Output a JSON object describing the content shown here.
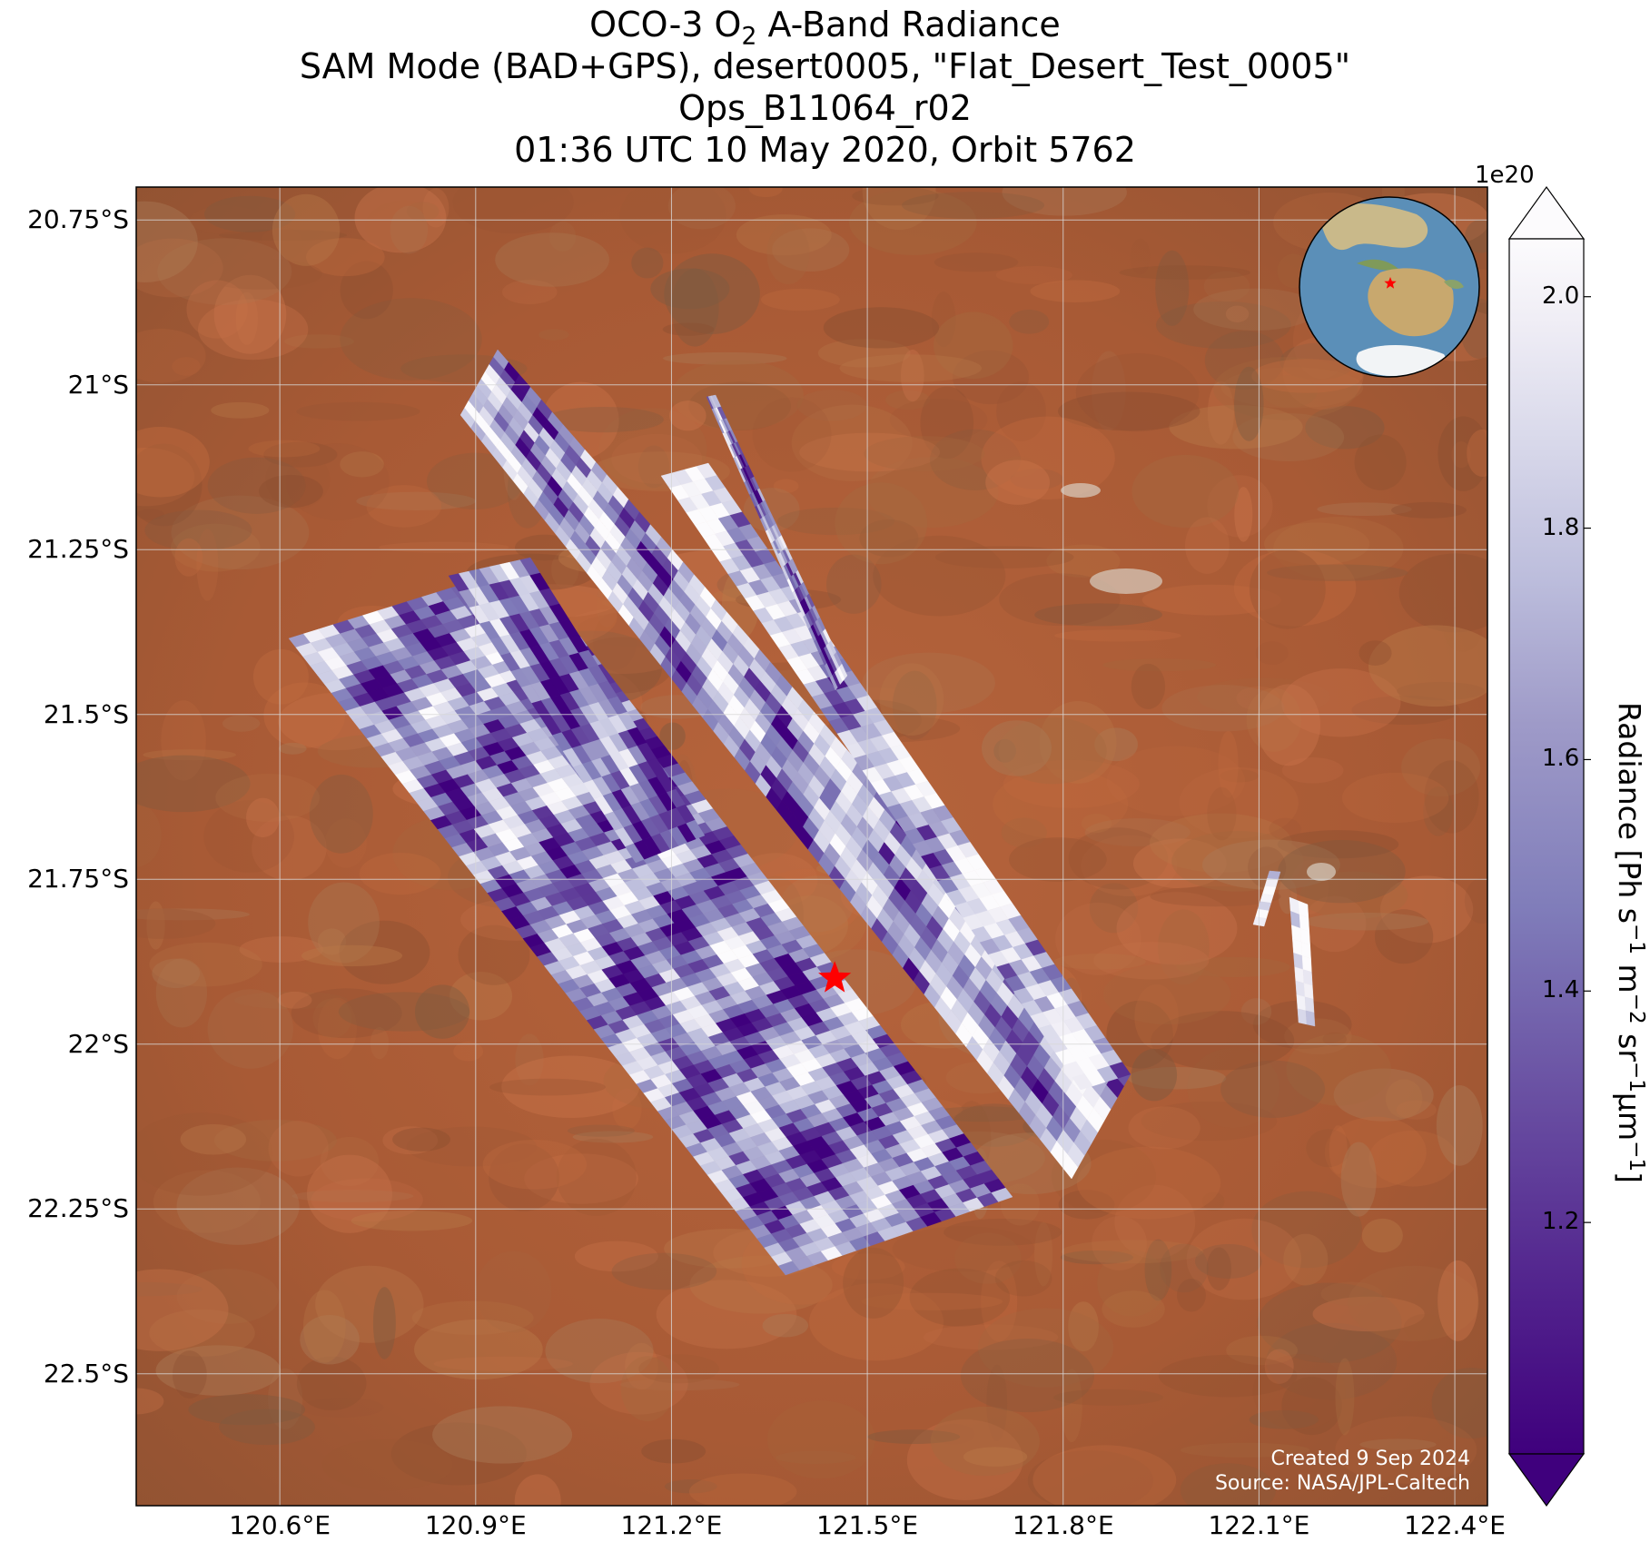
{
  "title": {
    "line1_prefix": "OCO-3 O",
    "line1_sub": "2",
    "line1_suffix": " A-Band Radiance",
    "line2": "SAM Mode (BAD+GPS), desert0005, \"Flat_Desert_Test_0005\"",
    "line3": "Ops_B11064_r02",
    "line4": "01:36 UTC 10 May 2020, Orbit 5762"
  },
  "axes": {
    "lat_labels": [
      "20.75°S",
      "21°S",
      "21.25°S",
      "21.5°S",
      "21.75°S",
      "22°S",
      "22.25°S",
      "22.5°S"
    ],
    "lat_values": [
      -20.75,
      -21.0,
      -21.25,
      -21.5,
      -21.75,
      -22.0,
      -22.25,
      -22.5
    ],
    "lon_labels": [
      "120.6°E",
      "120.9°E",
      "121.2°E",
      "121.5°E",
      "121.8°E",
      "122.1°E",
      "122.4°E"
    ],
    "lon_values": [
      120.6,
      120.9,
      121.2,
      121.5,
      121.8,
      122.1,
      122.4
    ],
    "lat_range": [
      -22.7,
      -20.7
    ],
    "lon_range": [
      120.38,
      122.45
    ],
    "grid": true
  },
  "target": {
    "name": "desert0005",
    "lat": -21.9,
    "lon": 121.45,
    "marker_color": "#ff0000"
  },
  "colorbar": {
    "exponent_label": "1e20",
    "label_main": "Radiance [Ph s",
    "label_parts": [
      "Radiance [Ph s",
      "−1",
      " m",
      "−2",
      " sr",
      "−1",
      "μm",
      "−1",
      "]"
    ],
    "ticks": [
      "1.2",
      "1.4",
      "1.6",
      "1.8",
      "2.0"
    ],
    "tick_values": [
      1.2,
      1.4,
      1.6,
      1.8,
      2.0
    ],
    "range": [
      1.0,
      2.05
    ],
    "colormap": [
      "#3f007d",
      "#54278f",
      "#6a51a3",
      "#807dba",
      "#9e9ac8",
      "#bcbddc",
      "#dadaeb",
      "#efedf5",
      "#fcfbfd"
    ],
    "extend": "both"
  },
  "credits": {
    "created": "Created 9 Sep 2024",
    "source": "Source: NASA/JPL-Caltech"
  },
  "inset_globe": {
    "description_icon": "globe-inset-icon",
    "marker_color": "#ff0000"
  },
  "background_colors": {
    "desert": "#b8623a",
    "ocean": "#5b8fb8"
  }
}
